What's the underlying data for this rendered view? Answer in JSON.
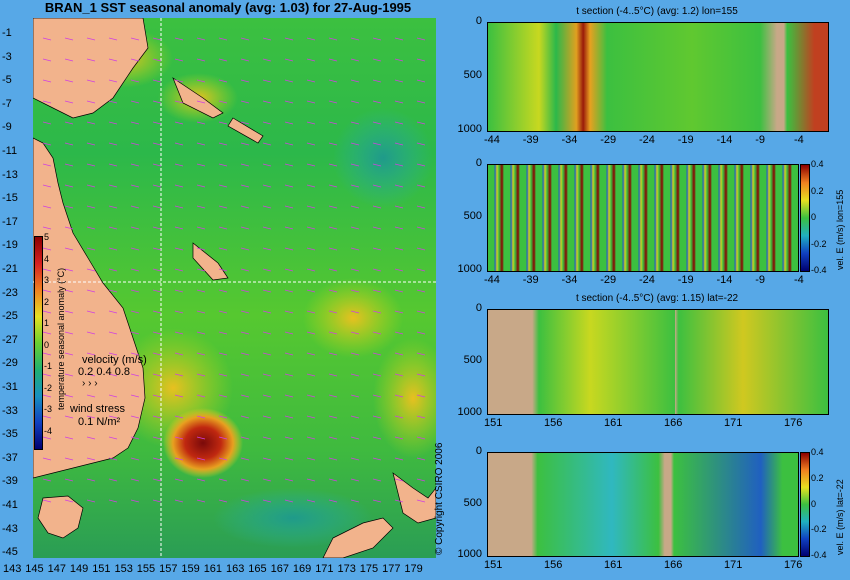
{
  "map_title": "BRAN_1 SST seasonal anomaly (avg: 1.03) for 27-Aug-1995",
  "lat_labels": [
    "-1",
    "-3",
    "-5",
    "-7",
    "-9",
    "-11",
    "-13",
    "-15",
    "-17",
    "-19",
    "-21",
    "-23",
    "-25",
    "-27",
    "-29",
    "-31",
    "-33",
    "-35",
    "-37",
    "-39",
    "-41",
    "-43",
    "-45"
  ],
  "lon_labels": [
    "143",
    "145",
    "147",
    "149",
    "151",
    "153",
    "155",
    "157",
    "159",
    "161",
    "163",
    "165",
    "167",
    "169",
    "171",
    "173",
    "175",
    "177",
    "179"
  ],
  "colorbar": {
    "ticks": [
      "5",
      "4",
      "3",
      "2",
      "1",
      "0",
      "-1",
      "-2",
      "-3",
      "-4"
    ],
    "label": "temperature seasonal anomaly (°C)"
  },
  "legend": {
    "velocity_title": "velocity (m/s)",
    "velocity_values": "0.2 0.4 0.8",
    "wind_title": "wind stress",
    "wind_value": "0.1 N/m²"
  },
  "copyright": "© Copyright CSIRO 2006",
  "panels": [
    {
      "title": "t section (-4..5°C) (avg: 1.2) lon=155",
      "yticks": [
        "0",
        "500",
        "1000"
      ],
      "xticks": [
        "-44",
        "-39",
        "-34",
        "-29",
        "-24",
        "-19",
        "-14",
        "-9",
        "-4"
      ],
      "side": ""
    },
    {
      "title": "",
      "yticks": [
        "0",
        "500",
        "1000"
      ],
      "xticks": [
        "-44",
        "-39",
        "-34",
        "-29",
        "-24",
        "-19",
        "-14",
        "-9",
        "-4"
      ],
      "side": "vel. E (m/s) lon=155",
      "cb_ticks": [
        "0.4",
        "0.2",
        "0",
        "-0.2",
        "-0.4"
      ]
    },
    {
      "title": "t section (-4..5°C) (avg: 1.15) lat=-22",
      "yticks": [
        "0",
        "500",
        "1000"
      ],
      "xticks": [
        "151",
        "156",
        "161",
        "166",
        "171",
        "176"
      ],
      "side": ""
    },
    {
      "title": "",
      "yticks": [
        "0",
        "500",
        "1000"
      ],
      "xticks": [
        "151",
        "156",
        "161",
        "166",
        "171",
        "176"
      ],
      "side": "vel. E (m/s) lat=-22",
      "cb_ticks": [
        "0.4",
        "0.2",
        "0",
        "-0.2",
        "-0.4"
      ]
    }
  ],
  "colors": {
    "background": "#57a8e7",
    "land": "#f2b38c",
    "section_land": "#c8a888",
    "arrows": "#d040e0"
  }
}
